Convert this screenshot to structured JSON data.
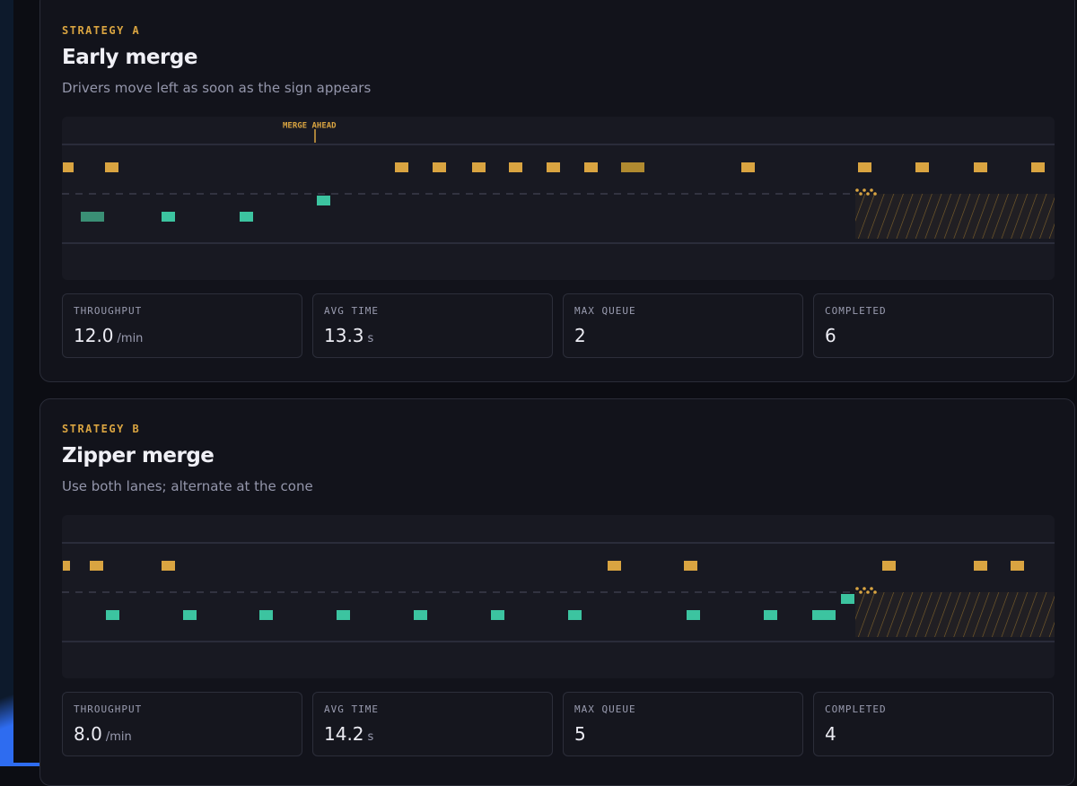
{
  "panels": [
    {
      "label": "STRATEGY A",
      "title": "Early merge",
      "subtitle": "Drivers move left as soon as the sign appears",
      "sign": "MERGE AHEAD",
      "stats": [
        {
          "label": "THROUGHPUT",
          "value": "12.0",
          "unit": "/min"
        },
        {
          "label": "AVG TIME",
          "value": "13.3",
          "unit": "s"
        },
        {
          "label": "MAX QUEUE",
          "value": "2"
        },
        {
          "label": "COMPLETED",
          "value": "6"
        }
      ]
    },
    {
      "label": "STRATEGY B",
      "title": "Zipper merge",
      "subtitle": "Use both lanes; alternate at the cone",
      "stats": [
        {
          "label": "THROUGHPUT",
          "value": "8.0",
          "unit": "/min"
        },
        {
          "label": "AVG TIME",
          "value": "14.2",
          "unit": "s"
        },
        {
          "label": "MAX QUEUE",
          "value": "5"
        },
        {
          "label": "COMPLETED",
          "value": "4"
        }
      ]
    }
  ]
}
